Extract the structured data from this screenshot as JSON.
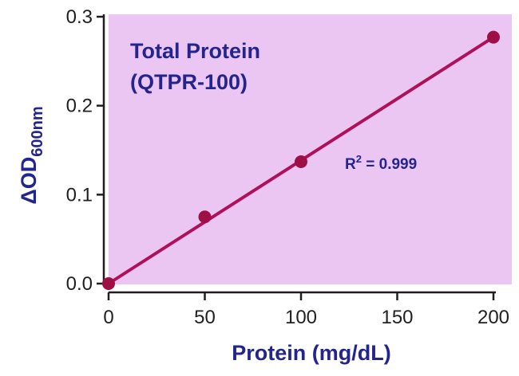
{
  "chart_data": {
    "type": "line",
    "title_line1": "Total Protein",
    "title_line2": "(QTPR-100)",
    "annotation": {
      "r_label": "R",
      "r_sup": "2",
      "r_value": " = 0.999"
    },
    "xlabel": "Protein (mg/dL)",
    "ylabel": {
      "delta": "Δ",
      "main": "OD",
      "sub": "600nm"
    },
    "xlim": [
      0,
      200
    ],
    "ylim": [
      0,
      0.3
    ],
    "x_ticks": [
      "0",
      "50",
      "100",
      "150",
      "200"
    ],
    "y_ticks": [
      "0.0",
      "0.1",
      "0.2",
      "0.3"
    ],
    "series": [
      {
        "points": [
          {
            "x": 0,
            "y": 0.0
          },
          {
            "x": 50,
            "y": 0.075
          },
          {
            "x": 100,
            "y": 0.137
          },
          {
            "x": 200,
            "y": 0.277
          }
        ],
        "fit": {
          "x": [
            0,
            200
          ],
          "y": [
            0.0,
            0.277
          ]
        }
      }
    ],
    "colors": {
      "plot_background": "#ebc6f3",
      "line": "#b0105a",
      "marker": "#9e1045",
      "text": "#24248e",
      "axis": "#1f1f1f"
    },
    "grid": false
  }
}
